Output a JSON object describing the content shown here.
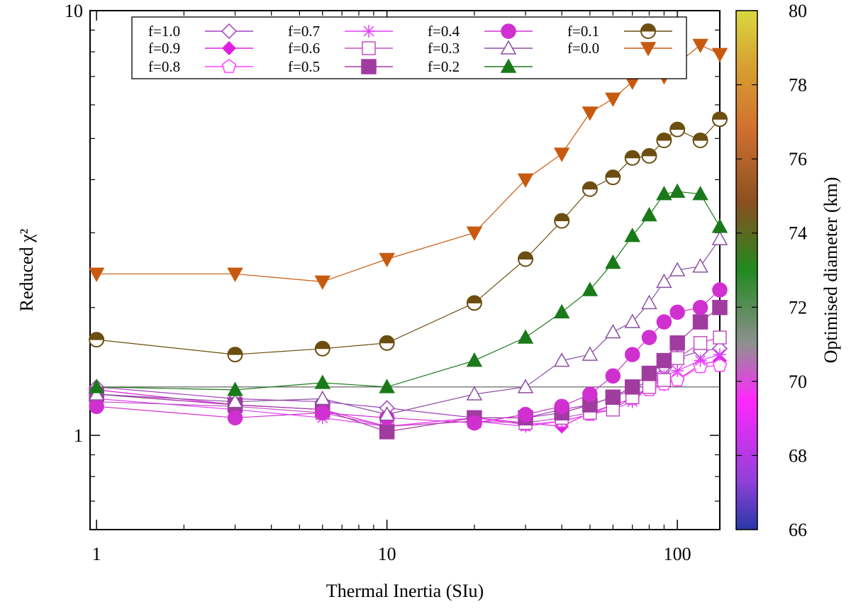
{
  "chart_data": {
    "type": "line",
    "xscale": "log",
    "yscale": "log",
    "xlabel": "Thermal Inertia (SIu)",
    "ylabel": "Reduced χ²",
    "xlim": [
      0.95,
      140
    ],
    "ylim": [
      0.6,
      10
    ],
    "xticks": [
      1,
      10,
      100
    ],
    "xtick_labels": [
      "1",
      "10",
      "100"
    ],
    "yticks": [
      1,
      10
    ],
    "ytick_labels": [
      "1",
      "10"
    ],
    "reference_line": 1.3,
    "x": [
      1,
      3,
      6,
      10,
      20,
      30,
      40,
      50,
      60,
      70,
      80,
      90,
      100,
      120,
      140
    ],
    "colorbar": {
      "label": "Optimised diameter (km)",
      "min": 66,
      "max": 80,
      "ticks": [
        66,
        68,
        70,
        72,
        74,
        76,
        78,
        80
      ],
      "tick_labels": [
        "66",
        "68",
        "70",
        "72",
        "74",
        "76",
        "78",
        "80"
      ],
      "stops": [
        {
          "v": 66,
          "color": "#2838a8"
        },
        {
          "v": 67.3,
          "color": "#9040d8"
        },
        {
          "v": 69.5,
          "color": "#ff28ff"
        },
        {
          "v": 71,
          "color": "#909090"
        },
        {
          "v": 73,
          "color": "#208a20"
        },
        {
          "v": 74.8,
          "color": "#8a5020"
        },
        {
          "v": 76.8,
          "color": "#d07030"
        },
        {
          "v": 78.5,
          "color": "#d8a030"
        },
        {
          "v": 80,
          "color": "#d8d840"
        }
      ]
    },
    "series": [
      {
        "name": "f=1.0",
        "marker": "diamond-open",
        "color": "#a040c0",
        "values": [
          1.3,
          1.22,
          1.2,
          1.16,
          1.1,
          1.1,
          1.15,
          1.18,
          1.23,
          1.28,
          1.35,
          1.45,
          1.52,
          1.58,
          1.6
        ]
      },
      {
        "name": "f=0.9",
        "marker": "diamond-filled",
        "color": "#e020e0",
        "values": [
          1.28,
          1.18,
          1.15,
          1.05,
          1.1,
          1.07,
          1.05,
          1.13,
          1.18,
          1.22,
          1.3,
          1.32,
          1.35,
          1.47,
          1.5
        ]
      },
      {
        "name": "f=0.8",
        "marker": "pentagon-open",
        "color": "#ff40ff",
        "values": [
          1.25,
          1.18,
          1.15,
          1.05,
          1.1,
          1.06,
          1.08,
          1.12,
          1.18,
          1.22,
          1.28,
          1.32,
          1.35,
          1.45,
          1.46
        ]
      },
      {
        "name": "f=0.7",
        "marker": "asterisk",
        "color": "#e040ff",
        "values": [
          1.22,
          1.15,
          1.1,
          1.05,
          1.08,
          1.05,
          1.08,
          1.12,
          1.15,
          1.2,
          1.3,
          1.38,
          1.42,
          1.5,
          1.55
        ]
      },
      {
        "name": "f=0.6",
        "marker": "square-open",
        "color": "#c050c0",
        "values": [
          1.2,
          1.17,
          1.13,
          1.05,
          1.08,
          1.07,
          1.1,
          1.13,
          1.15,
          1.23,
          1.3,
          1.35,
          1.52,
          1.65,
          1.7
        ]
      },
      {
        "name": "f=0.5",
        "marker": "square-filled",
        "color": "#a03ca0",
        "values": [
          1.25,
          1.18,
          1.15,
          1.02,
          1.1,
          1.1,
          1.13,
          1.18,
          1.23,
          1.3,
          1.4,
          1.5,
          1.65,
          1.85,
          2.0
        ]
      },
      {
        "name": "f=0.4",
        "marker": "circle-filled",
        "color": "#d030d0",
        "values": [
          1.17,
          1.1,
          1.13,
          1.1,
          1.07,
          1.12,
          1.17,
          1.25,
          1.38,
          1.55,
          1.7,
          1.85,
          1.95,
          2.0,
          2.2
        ]
      },
      {
        "name": "f=0.3",
        "marker": "triangle-open",
        "color": "#8a4fa0",
        "values": [
          1.25,
          1.2,
          1.22,
          1.12,
          1.25,
          1.3,
          1.5,
          1.55,
          1.75,
          1.85,
          2.05,
          2.3,
          2.45,
          2.5,
          2.9
        ]
      },
      {
        "name": "f=0.2",
        "marker": "triangle-filled",
        "color": "#1a7a1a",
        "values": [
          1.3,
          1.28,
          1.33,
          1.3,
          1.5,
          1.7,
          1.95,
          2.2,
          2.55,
          2.95,
          3.3,
          3.7,
          3.75,
          3.7,
          3.1
        ]
      },
      {
        "name": "f=0.1",
        "marker": "circle-half",
        "color": "#6b4e10",
        "values": [
          1.68,
          1.55,
          1.6,
          1.65,
          2.05,
          2.6,
          3.2,
          3.8,
          4.05,
          4.5,
          4.55,
          4.95,
          5.25,
          4.95,
          5.55
        ]
      },
      {
        "name": "f=0.0",
        "marker": "triangle-down-filled",
        "color": "#c85a10",
        "values": [
          2.4,
          2.4,
          2.3,
          2.6,
          3.0,
          4.0,
          4.6,
          5.75,
          6.2,
          6.8,
          7.3,
          7.0,
          7.5,
          8.3,
          7.9
        ]
      }
    ]
  }
}
